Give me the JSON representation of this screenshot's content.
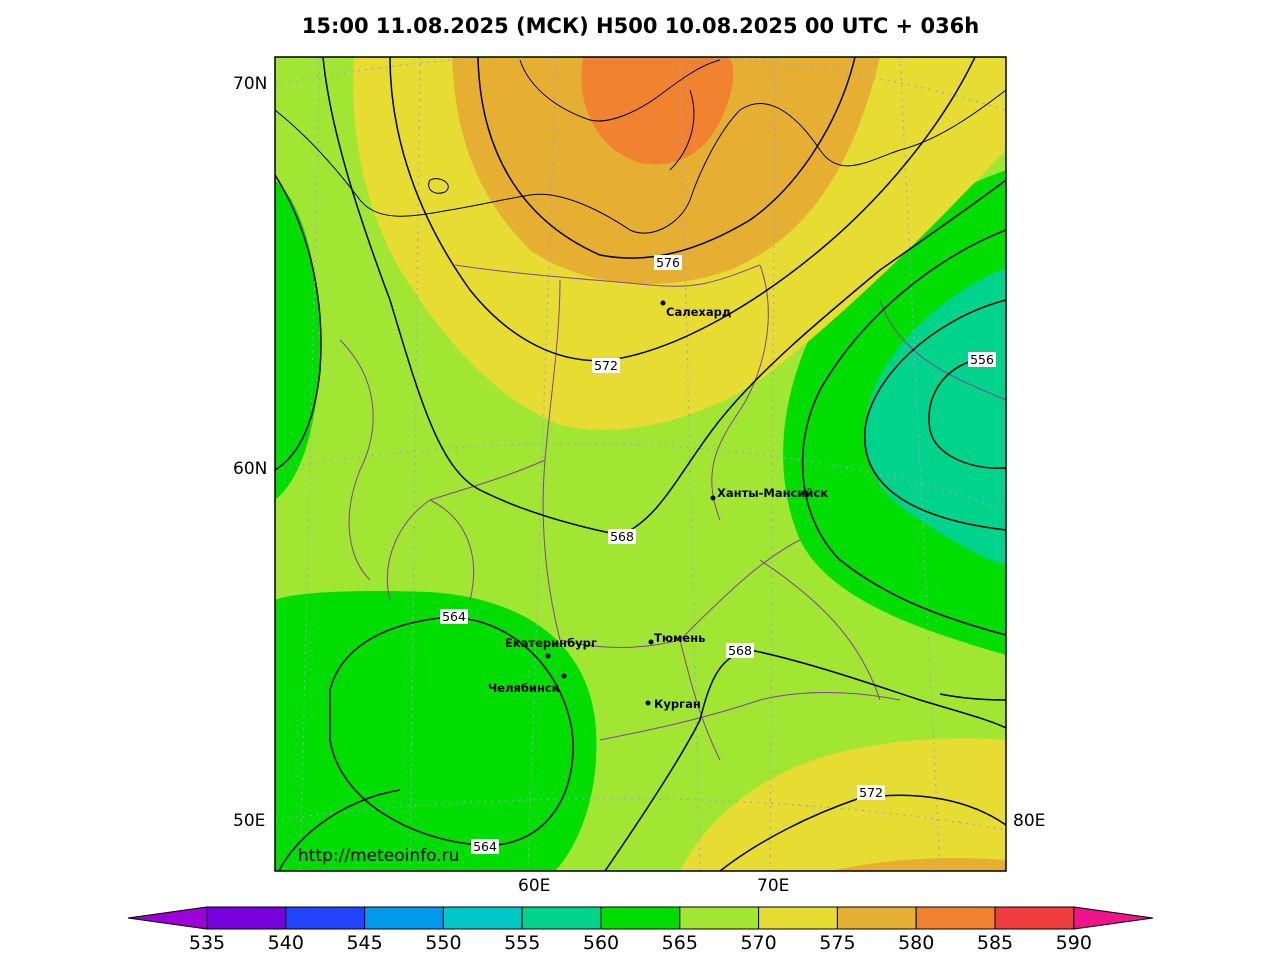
{
  "title": "15:00 11.08.2025 (МСК) H500  10.08.2025 00 UTC + 036h",
  "axes": {
    "lat_labels": [
      "70N",
      "60N",
      "50E"
    ],
    "lon_labels": [
      "60E",
      "70E",
      "80E"
    ]
  },
  "watermark": "http://meteoinfo.ru",
  "cities": [
    {
      "name": "Салехард"
    },
    {
      "name": "Ханты-Мансийск"
    },
    {
      "name": "Екатеринбург"
    },
    {
      "name": "Тюмень"
    },
    {
      "name": "Челябинск"
    },
    {
      "name": "Курган"
    }
  ],
  "contour_labels": [
    "576",
    "572",
    "568",
    "564",
    "568",
    "572",
    "564",
    "556"
  ],
  "colorbar": {
    "ticks": [
      "535",
      "540",
      "545",
      "550",
      "555",
      "560",
      "565",
      "570",
      "575",
      "580",
      "585",
      "590"
    ],
    "colors": [
      "#9b00d8",
      "#7700dd",
      "#2244ff",
      "#0099ee",
      "#00c8c8",
      "#00d48c",
      "#00dd00",
      "#a0e632",
      "#e6dc32",
      "#e6af32",
      "#f08230",
      "#f03c3c",
      "#f0148c"
    ]
  },
  "field_colors": {
    "c560": "#00d48c",
    "c565": "#00dd00",
    "c570": "#a0e632",
    "c575": "#e6dc32",
    "c580": "#e6af32",
    "c585": "#f08230"
  }
}
